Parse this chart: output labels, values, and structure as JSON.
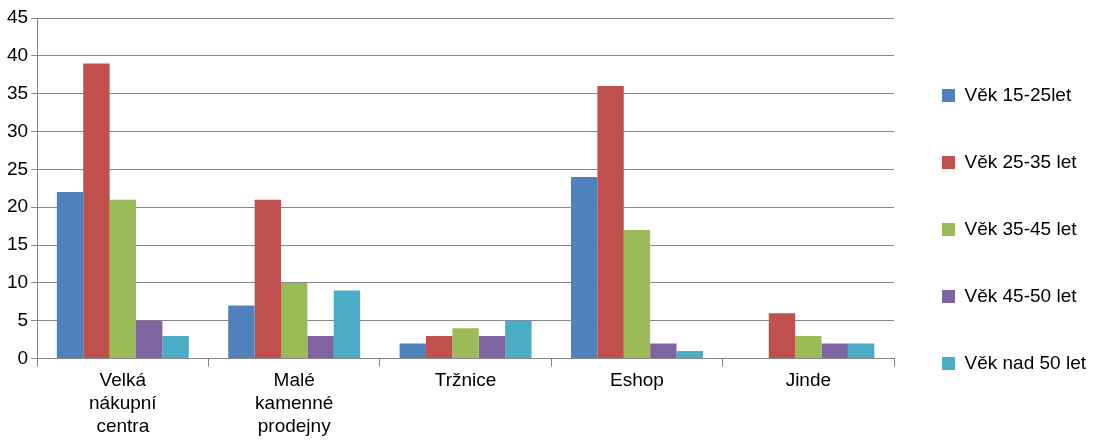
{
  "chart_data": {
    "type": "bar",
    "categories": [
      "Velká nákupní centra",
      "Malé kamenné prodejny",
      "Tržnice",
      "Eshop",
      "Jinde"
    ],
    "series": [
      {
        "name": "Věk 15-25let",
        "color": "#4f81bd",
        "values": [
          22,
          7,
          2,
          24,
          0
        ]
      },
      {
        "name": "Věk 25-35 let",
        "color": "#c0504d",
        "values": [
          39,
          21,
          3,
          36,
          6
        ]
      },
      {
        "name": "Věk 35-45 let",
        "color": "#9bbb59",
        "values": [
          21,
          10,
          4,
          17,
          3
        ]
      },
      {
        "name": "Věk 45-50 let",
        "color": "#8064a2",
        "values": [
          5,
          3,
          3,
          2,
          2
        ]
      },
      {
        "name": "Věk nad 50 let",
        "color": "#4bacc6",
        "values": [
          3,
          9,
          5,
          1,
          2
        ]
      }
    ],
    "ylim": [
      0,
      45
    ],
    "yticks": [
      0,
      5,
      10,
      15,
      20,
      25,
      30,
      35,
      40,
      45
    ],
    "grid": "y",
    "legend": "right"
  }
}
